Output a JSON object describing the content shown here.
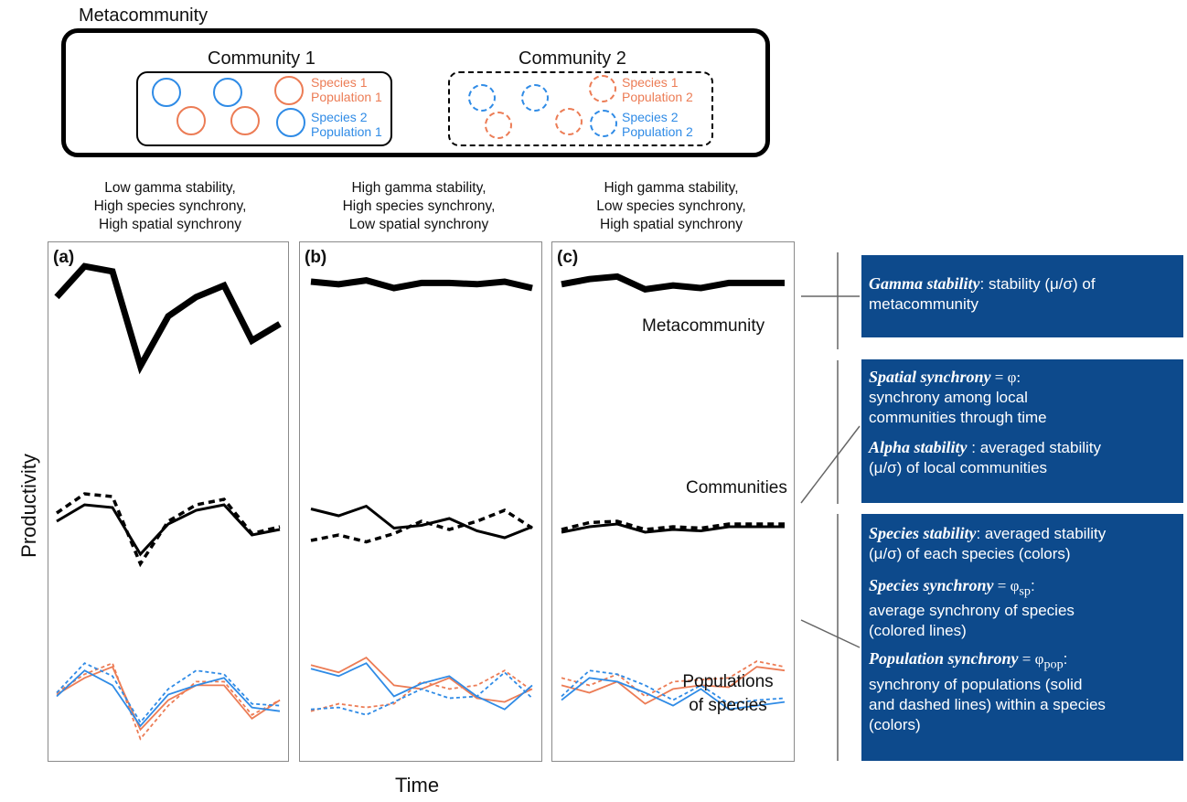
{
  "metacommunity_title": "Metacommunity",
  "community1": {
    "title": "Community 1",
    "species1_line1": "Species 1",
    "species1_line2": "Population 1",
    "species2_line1": "Species 2",
    "species2_line2": "Population 1"
  },
  "community2": {
    "title": "Community 2",
    "species1_line1": "Species 1",
    "species1_line2": "Population 2",
    "species2_line1": "Species 2",
    "species2_line2": "Population 2"
  },
  "panels": [
    {
      "letter": "(a)",
      "desc": [
        "Low gamma stability,",
        "High species synchrony,",
        "High spatial synchrony"
      ]
    },
    {
      "letter": "(b)",
      "desc": [
        "High gamma stability,",
        "High species synchrony,",
        "Low spatial synchrony"
      ]
    },
    {
      "letter": "(c)",
      "desc": [
        "High gamma stability,",
        "Low species synchrony,",
        "High spatial synchrony"
      ]
    }
  ],
  "labels": {
    "metacommunity": "Metacommunity",
    "communities": "Communities",
    "populations_line1": "Populations",
    "populations_line2": "of species",
    "y_axis": "Productivity",
    "x_axis": "Time"
  },
  "info": {
    "gamma_term": "Gamma stability",
    "gamma_text_1": ": stability (μ/σ) of",
    "gamma_text_2": "metacommunity",
    "spatial_term": "Spatial synchrony",
    "spatial_eq": " = φ:",
    "spatial_text_1": "synchrony among local",
    "spatial_text_2": "communities through time",
    "alpha_term": "Alpha stability",
    "alpha_text_1": " : averaged stability",
    "alpha_text_2": "(μ/σ) of local communities",
    "species_stab_term": "Species stability",
    "species_stab_text_1": ": averaged stability",
    "species_stab_text_2": "(μ/σ) of each species (colors)",
    "species_sync_term": "Species synchrony",
    "species_sync_eq": " = φ",
    "species_sync_sub": "sp",
    "species_sync_colon": ":",
    "species_sync_text_1": "average synchrony of species",
    "species_sync_text_2": "(colored lines)",
    "pop_sync_term": "Population synchrony",
    "pop_sync_eq": " = φ",
    "pop_sync_sub": "pop",
    "pop_sync_colon": ":",
    "pop_sync_text_1": "synchrony of populations (solid",
    "pop_sync_text_2": "and dashed lines) within a species",
    "pop_sync_text_3": "(colors)"
  },
  "colors": {
    "species1": "#ec7c55",
    "species2": "#2f8be6",
    "info_box": "#0d4a8c"
  },
  "series": {
    "a": {
      "meta": [
        68,
        92,
        88,
        14,
        53,
        68,
        77,
        34,
        47
      ],
      "comm_solid": [
        52,
        64,
        62,
        28,
        50,
        60,
        64,
        42,
        46
      ],
      "comm_dash": [
        58,
        72,
        70,
        21,
        52,
        64,
        68,
        43,
        48
      ],
      "sp1_solid": [
        25,
        34,
        40,
        6,
        22,
        30,
        30,
        12,
        22
      ],
      "sp1_dash": [
        26,
        36,
        42,
        1,
        19,
        32,
        32,
        14,
        22
      ],
      "sp2_solid": [
        24,
        38,
        30,
        8,
        25,
        30,
        34,
        18,
        16
      ],
      "sp2_dash": [
        26,
        42,
        35,
        10,
        28,
        38,
        36,
        20,
        19
      ]
    },
    "b": {
      "meta": [
        80,
        78,
        81,
        75,
        79,
        79,
        78,
        80,
        75
      ],
      "comm_solid": [
        61,
        56,
        63,
        47,
        49,
        54,
        45,
        40,
        48
      ],
      "comm_dash": [
        38,
        42,
        37,
        43,
        52,
        46,
        52,
        60,
        47
      ],
      "sp1_solid": [
        41,
        37,
        45,
        30,
        28,
        34,
        23,
        21,
        28
      ],
      "sp1_dash": [
        16,
        20,
        18,
        20,
        32,
        28,
        30,
        38,
        27
      ],
      "sp2_solid": [
        39,
        35,
        42,
        24,
        31,
        35,
        24,
        17,
        30
      ],
      "sp2_dash": [
        17,
        18,
        14,
        21,
        28,
        23,
        24,
        37,
        23
      ]
    },
    "c": {
      "meta": [
        78,
        82,
        84,
        74,
        77,
        75,
        79,
        79,
        79
      ],
      "comm_solid": [
        44,
        48,
        50,
        44,
        46,
        45,
        48,
        48,
        48
      ],
      "comm_dash": [
        46,
        51,
        52,
        46,
        48,
        47,
        50,
        50,
        50
      ],
      "sp1_solid": [
        30,
        26,
        32,
        20,
        28,
        30,
        29,
        40,
        38
      ],
      "sp1_dash": [
        34,
        30,
        36,
        24,
        32,
        33,
        34,
        43,
        40
      ],
      "sp2_solid": [
        22,
        34,
        32,
        26,
        19,
        28,
        17,
        19,
        21
      ],
      "sp2_dash": [
        24,
        38,
        36,
        30,
        22,
        30,
        20,
        22,
        23
      ]
    }
  }
}
